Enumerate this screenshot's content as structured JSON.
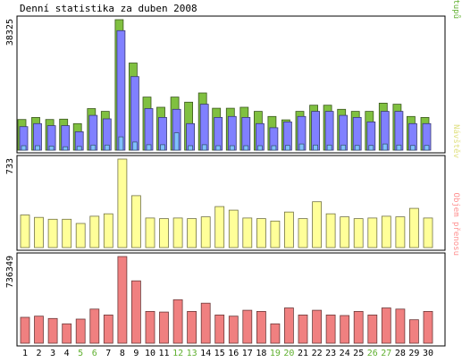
{
  "chart_data": {
    "type": "bar",
    "title": "Denní statistika za duben 2008",
    "categories": [
      "1",
      "2",
      "3",
      "4",
      "5",
      "6",
      "7",
      "8",
      "9",
      "10",
      "11",
      "12",
      "13",
      "14",
      "15",
      "16",
      "17",
      "18",
      "19",
      "20",
      "21",
      "22",
      "23",
      "24",
      "25",
      "26",
      "27",
      "28",
      "29",
      "30"
    ],
    "weekend_days": [
      "5",
      "6",
      "12",
      "13",
      "19",
      "20",
      "26",
      "27"
    ],
    "panels": [
      {
        "id": "hits",
        "max_label": "38325",
        "ymax": 38325,
        "legend": [
          {
            "text": "Stránek",
            "color": "#4080ff"
          },
          {
            "text": "/",
            "color": "#000000"
          },
          {
            "text": "Soubory",
            "color": "#8080ff"
          },
          {
            "text": "/",
            "color": "#000000"
          },
          {
            "text": "Přístupů",
            "color": "#60b030"
          }
        ],
        "series": [
          {
            "name": "Přístupů",
            "color": "#80c040",
            "values": [
              9000,
              9600,
              9000,
              9100,
              7800,
              12200,
              11400,
              38325,
              25600,
              15600,
              12600,
              15600,
              14100,
              16800,
              12300,
              12300,
              12600,
              11400,
              9900,
              8900,
              11400,
              13200,
              13200,
              12000,
              11400,
              11400,
              13800,
              13500,
              9900,
              9600
            ]
          },
          {
            "name": "Soubory",
            "color": "#8080ff",
            "values": [
              6900,
              7800,
              7200,
              7200,
              5400,
              10200,
              9200,
              35100,
              21600,
              12200,
              9600,
              12000,
              7800,
              13500,
              9600,
              9900,
              9600,
              7800,
              6600,
              8300,
              9900,
              11400,
              11400,
              10200,
              9600,
              8300,
              11400,
              11400,
              7800,
              7800
            ]
          },
          {
            "name": "Stránek",
            "color": "#80c0ff",
            "values": [
              1300,
              1300,
              1200,
              1000,
              1100,
              1500,
              1500,
              3900,
              2400,
              1600,
              1600,
              5100,
              1300,
              1600,
              1300,
              1300,
              1300,
              1300,
              1300,
              1400,
              1800,
              1500,
              1500,
              1500,
              1400,
              1400,
              1800,
              1500,
              1400,
              1400
            ]
          }
        ]
      },
      {
        "id": "visits",
        "max_label": "733",
        "ymax": 733,
        "legend": [
          {
            "text": "Návštěv",
            "color": "#e0e080"
          }
        ],
        "series": [
          {
            "name": "Návštěv",
            "color": "#ffff99",
            "values": [
              270,
              250,
              235,
              235,
              200,
              260,
              280,
              733,
              430,
              245,
              240,
              245,
              240,
              255,
              340,
              310,
              245,
              240,
              220,
              295,
              240,
              380,
              280,
              255,
              240,
              245,
              260,
              255,
              325,
              245
            ]
          }
        ]
      },
      {
        "id": "traffic",
        "max_label": "736349",
        "ymax": 736349,
        "legend": [
          {
            "text": "Objem přenosu",
            "color": "#ff9090"
          }
        ],
        "series": [
          {
            "name": "Objem přenosu",
            "color": "#f08080",
            "values": [
              220000,
              230000,
              210000,
              165000,
              205000,
              290000,
              240000,
              736349,
              530000,
              270000,
              265000,
              370000,
              270000,
              340000,
              240000,
              230000,
              280000,
              270000,
              165000,
              300000,
              240000,
              280000,
              240000,
              235000,
              270000,
              240000,
              300000,
              290000,
              200000,
              270000
            ]
          }
        ]
      }
    ]
  }
}
